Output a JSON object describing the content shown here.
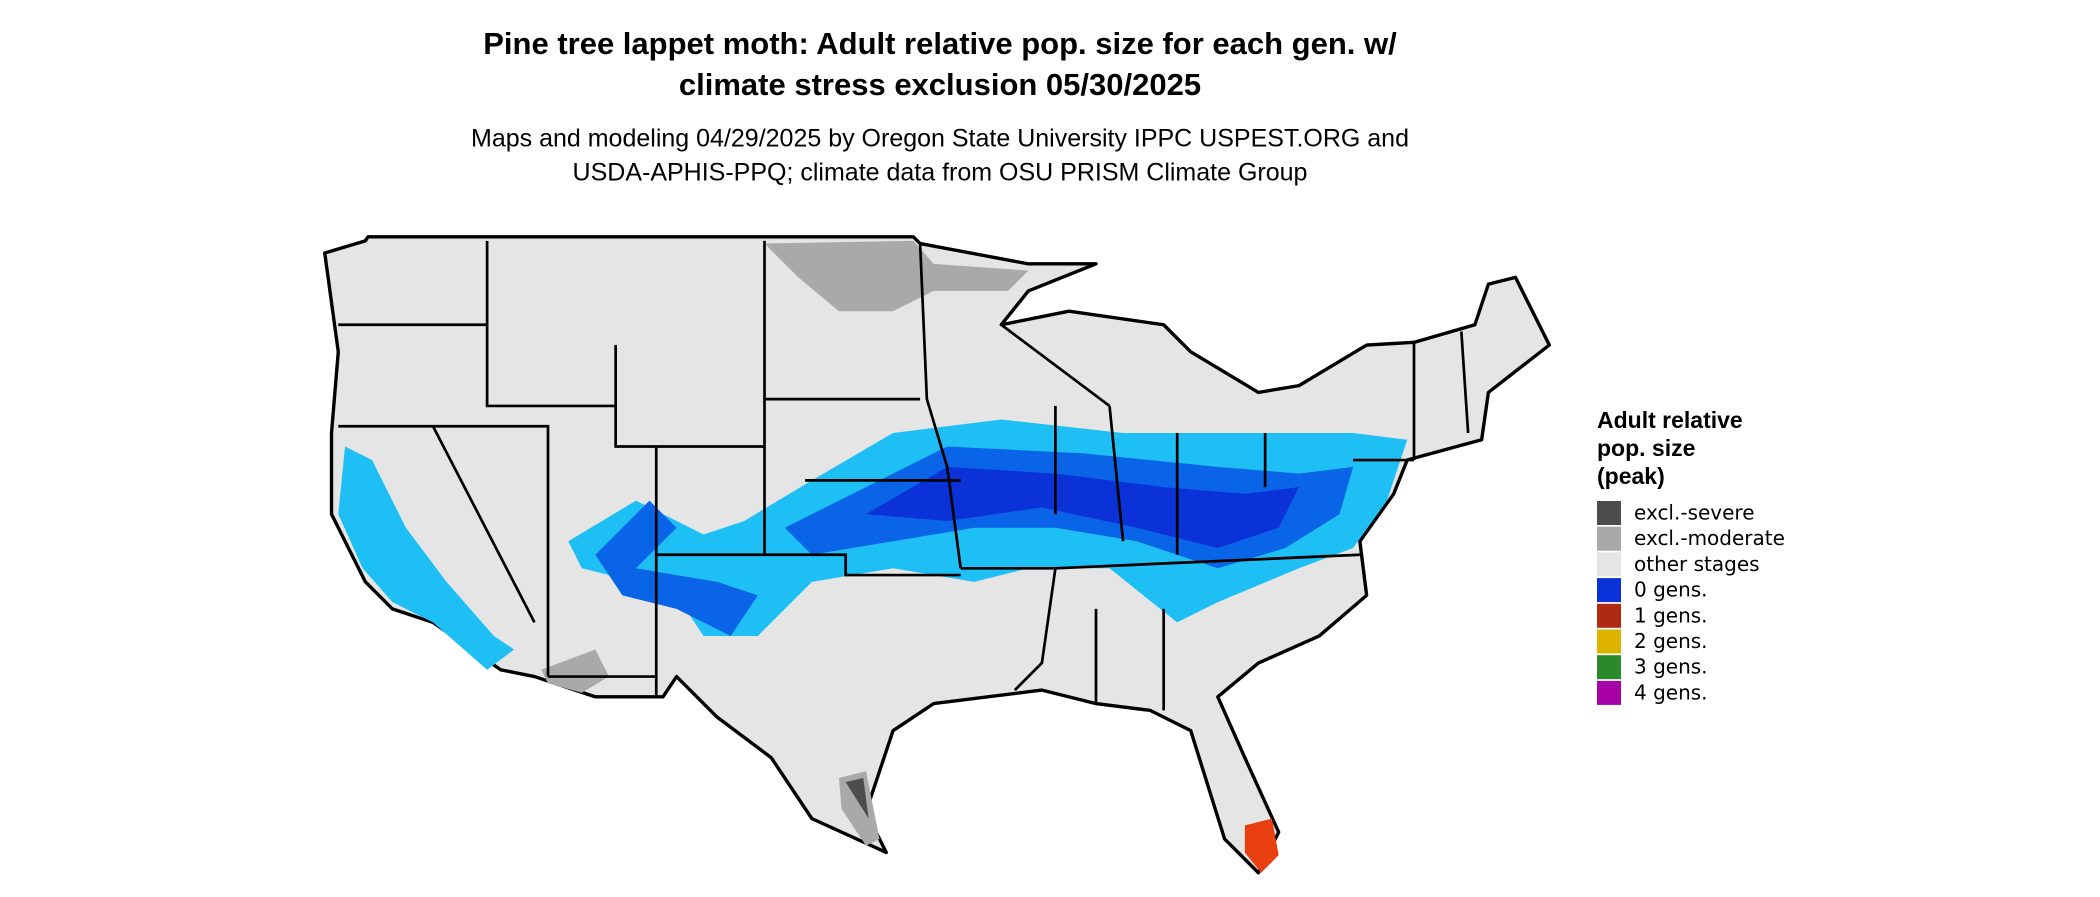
{
  "title": [
    "Pine tree lappet moth: Adult relative pop. size for each gen. w/",
    "climate stress exclusion 05/30/2025"
  ],
  "subtitle": [
    "Maps and modeling 04/29/2025 by Oregon State University IPPC USPEST.ORG and",
    "USDA-APHIS-PPQ; climate data from OSU PRISM Climate Group"
  ],
  "legend": {
    "title": [
      "Adult relative",
      "pop. size",
      "(peak)"
    ],
    "items": [
      {
        "label": "excl.-severe",
        "color": "#4d4d4d"
      },
      {
        "label": "excl.-moderate",
        "color": "#a9a9a9"
      },
      {
        "label": "other stages",
        "color": "#e5e5e5"
      },
      {
        "label": "0 gens.",
        "color": "#0a32d8"
      },
      {
        "label": "1 gens.",
        "color": "#b02a12"
      },
      {
        "label": "2 gens.",
        "color": "#dcb400"
      },
      {
        "label": "3 gens.",
        "color": "#2a8a2a"
      },
      {
        "label": "4 gens.",
        "color": "#a600a6"
      }
    ]
  }
}
